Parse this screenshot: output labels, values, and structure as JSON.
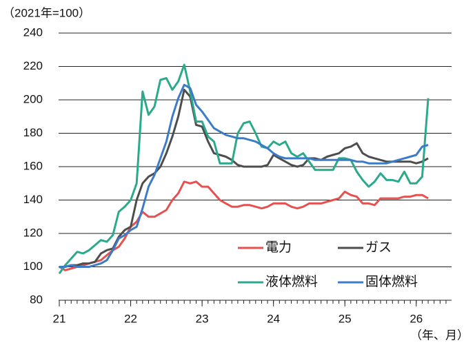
{
  "chart_data": {
    "type": "line",
    "y_unit_label": "（2021年=100）",
    "x_label": "（年、月）",
    "categories": [
      "21",
      null,
      null,
      null,
      null,
      null,
      null,
      null,
      null,
      null,
      null,
      null,
      "22",
      null,
      null,
      null,
      null,
      null,
      null,
      null,
      null,
      null,
      null,
      null,
      "23",
      null,
      null,
      null,
      null,
      null,
      null,
      null,
      null,
      null,
      null,
      null,
      "24",
      null,
      null,
      null,
      null,
      null,
      null,
      null,
      null,
      null,
      null,
      null,
      "25",
      null,
      null,
      null,
      null,
      null,
      null,
      null,
      null,
      null,
      null,
      null,
      "26",
      null,
      null
    ],
    "ylim": [
      80,
      240
    ],
    "yticks": [
      80,
      100,
      120,
      140,
      160,
      180,
      200,
      220,
      240
    ],
    "grid": true,
    "series": [
      {
        "name": "電力",
        "color": "#e5514f",
        "values": [
          100,
          98,
          99,
          100,
          101,
          102,
          103,
          104,
          107,
          110,
          112,
          117,
          124,
          127,
          133,
          130,
          130,
          132,
          134,
          140,
          144,
          151,
          150,
          151,
          148,
          148,
          144,
          140,
          138,
          136,
          136,
          137,
          137,
          136,
          135,
          136,
          138,
          138,
          138,
          136,
          135,
          136,
          138,
          138,
          138,
          139,
          140,
          141,
          145,
          143,
          142,
          138,
          138,
          137,
          141,
          141,
          141,
          141,
          142,
          142,
          143,
          143,
          141
        ]
      },
      {
        "name": "ガス",
        "color": "#4d4d4d",
        "values": [
          100,
          100,
          101,
          101,
          102,
          102,
          103,
          108,
          110,
          111,
          118,
          122,
          124,
          140,
          150,
          154,
          156,
          160,
          168,
          178,
          190,
          206,
          202,
          185,
          184,
          175,
          168,
          167,
          166,
          164,
          161,
          160,
          160,
          160,
          160,
          161,
          167,
          165,
          163,
          161,
          160,
          161,
          165,
          165,
          164,
          166,
          167,
          168,
          171,
          172,
          174,
          168,
          166,
          165,
          164,
          163,
          163,
          163,
          163,
          163,
          162,
          163,
          165
        ]
      },
      {
        "name": "液体燃料",
        "color": "#2aa98b",
        "values": [
          96,
          101,
          105,
          109,
          108,
          110,
          113,
          116,
          115,
          119,
          133,
          136,
          140,
          150,
          205,
          191,
          196,
          212,
          213,
          206,
          211,
          221,
          205,
          187,
          187,
          178,
          175,
          162,
          162,
          162,
          180,
          186,
          187,
          180,
          172,
          171,
          175,
          173,
          175,
          168,
          166,
          168,
          163,
          158,
          158,
          158,
          158,
          165,
          165,
          164,
          157,
          152,
          148,
          151,
          156,
          152,
          152,
          151,
          157,
          150,
          150,
          154,
          201
        ]
      },
      {
        "name": "固体燃料",
        "color": "#3b7bc8",
        "values": [
          100,
          100,
          101,
          100,
          100,
          100,
          101,
          102,
          104,
          110,
          117,
          119,
          122,
          124,
          135,
          148,
          155,
          165,
          175,
          190,
          201,
          209,
          207,
          197,
          193,
          188,
          183,
          181,
          179,
          178,
          177,
          177,
          176,
          175,
          173,
          171,
          168,
          166,
          165,
          165,
          165,
          165,
          165,
          164,
          164,
          164,
          164,
          164,
          164,
          164,
          163,
          163,
          162,
          162,
          162,
          162,
          163,
          164,
          165,
          166,
          167,
          172,
          173
        ]
      }
    ]
  }
}
